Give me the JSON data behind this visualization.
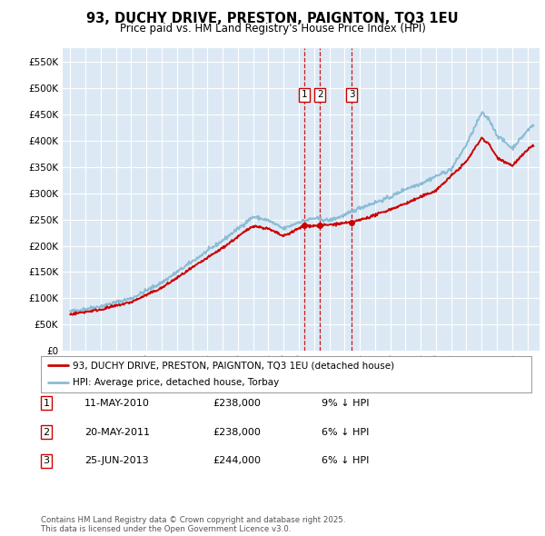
{
  "title": "93, DUCHY DRIVE, PRESTON, PAIGNTON, TQ3 1EU",
  "subtitle": "Price paid vs. HM Land Registry's House Price Index (HPI)",
  "legend_property": "93, DUCHY DRIVE, PRESTON, PAIGNTON, TQ3 1EU (detached house)",
  "legend_hpi": "HPI: Average price, detached house, Torbay",
  "footer": "Contains HM Land Registry data © Crown copyright and database right 2025.\nThis data is licensed under the Open Government Licence v3.0.",
  "transactions": [
    {
      "num": 1,
      "date": "11-MAY-2010",
      "date_dec": 2010.36,
      "price": 238000,
      "note": "9% ↓ HPI"
    },
    {
      "num": 2,
      "date": "20-MAY-2011",
      "date_dec": 2011.38,
      "price": 238000,
      "note": "6% ↓ HPI"
    },
    {
      "num": 3,
      "date": "25-JUN-2013",
      "date_dec": 2013.48,
      "price": 244000,
      "note": "6% ↓ HPI"
    }
  ],
  "ylim": [
    0,
    575000
  ],
  "yticks": [
    0,
    50000,
    100000,
    150000,
    200000,
    250000,
    300000,
    350000,
    400000,
    450000,
    500000,
    550000
  ],
  "plot_bg": "#dce9f5",
  "grid_color": "#ffffff",
  "property_line_color": "#cc0000",
  "hpi_line_color": "#8bbcd4",
  "dashed_line_color": "#cc0000"
}
